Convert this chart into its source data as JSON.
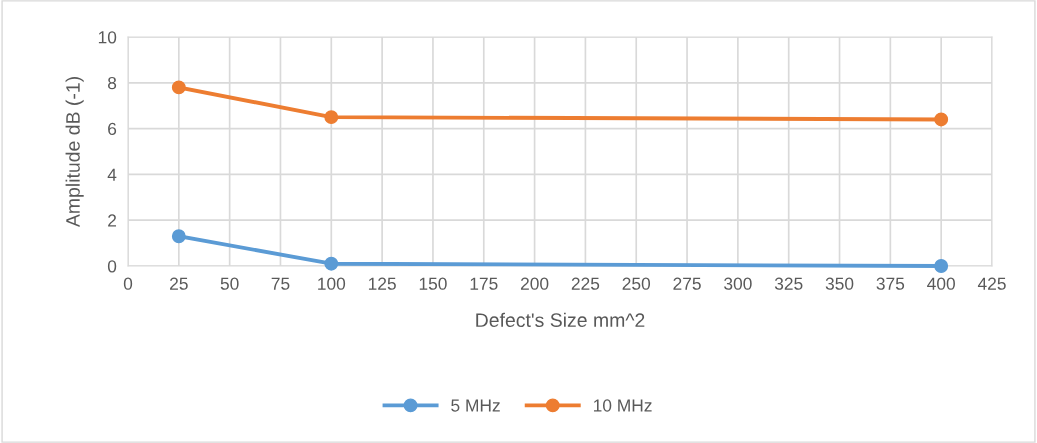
{
  "chart_data": {
    "type": "line",
    "xlabel": "Defect's Size mm^2",
    "ylabel": "Amplitude dB (-1)",
    "x": [
      25,
      100,
      400
    ],
    "series": [
      {
        "name": "5 MHz",
        "color": "#5b9bd5",
        "values": [
          1.3,
          0.1,
          0
        ]
      },
      {
        "name": "10 MHz",
        "color": "#ed7d31",
        "values": [
          7.8,
          6.5,
          6.4
        ]
      }
    ],
    "xlim": [
      0,
      425
    ],
    "xticks": [
      0,
      25,
      50,
      75,
      100,
      125,
      150,
      175,
      200,
      225,
      250,
      275,
      300,
      325,
      350,
      375,
      400,
      425
    ],
    "ylim": [
      0,
      10
    ],
    "yticks": [
      0,
      2,
      4,
      6,
      8,
      10
    ],
    "grid": true,
    "legend": "bottom",
    "marker": "circle",
    "line_style": "solid"
  }
}
